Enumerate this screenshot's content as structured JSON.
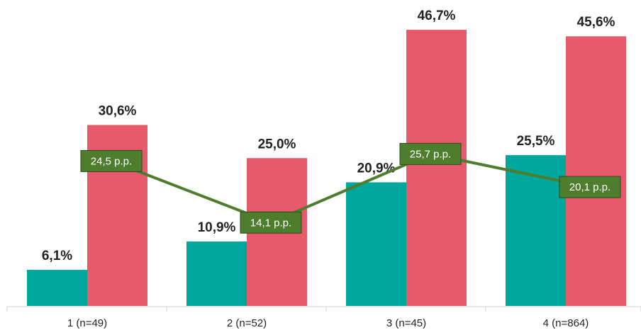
{
  "chart_data": {
    "type": "bar",
    "categories": [
      "1 (n=49)",
      "2 (n=52)",
      "3 (n=45)",
      "4 (n=864)"
    ],
    "series": [
      {
        "values": [
          6.1,
          10.9,
          20.9,
          25.5
        ],
        "labels": [
          "6,1%",
          "10,9%",
          "20,9%",
          "25,5%"
        ],
        "color": "#00a79d"
      },
      {
        "values": [
          30.6,
          25.0,
          46.7,
          45.6
        ],
        "labels": [
          "30,6%",
          "25,0%",
          "46,7%",
          "45,6%"
        ],
        "color": "#e85a6b"
      }
    ],
    "gap_line": {
      "values": [
        24.5,
        14.1,
        25.7,
        20.1
      ],
      "labels": [
        "24,5 p.p.",
        "14,1 p.p.",
        "25,7 p.p.",
        "20,1 p.p."
      ],
      "color": "#4e7d2e"
    },
    "ylim": [
      0,
      50
    ],
    "grid": false,
    "legend": "none"
  }
}
